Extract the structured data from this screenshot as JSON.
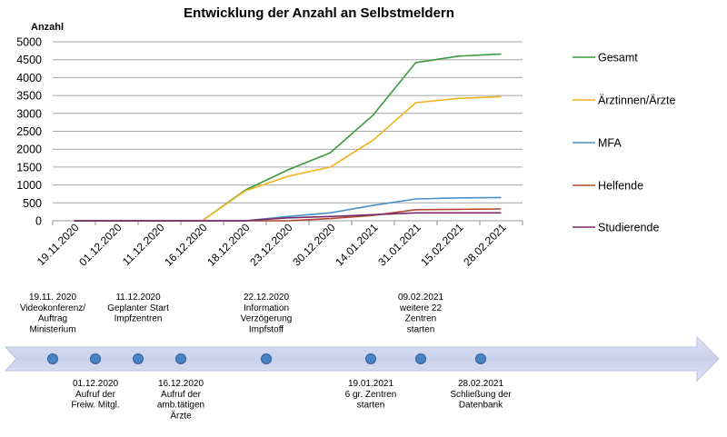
{
  "chart_data": {
    "type": "line",
    "title": "Entwicklung der Anzahl an Selbstmeldern",
    "ylabel": "Anzahl",
    "xlabel": "",
    "ylim": [
      0,
      5000
    ],
    "yticks": [
      0,
      500,
      1000,
      1500,
      2000,
      2500,
      3000,
      3500,
      4000,
      4500,
      5000
    ],
    "categories": [
      "19.11.2020",
      "01.12.2020",
      "11.12.2020",
      "16.12.2020",
      "18.12.2020",
      "23.12.2020",
      "30.12.2020",
      "14.01.2021",
      "31.01.2021",
      "15.02.2021",
      "28.02.2021"
    ],
    "grid": true,
    "legend_position": "right",
    "series": [
      {
        "name": "Gesamt",
        "color": "#3a9a3a",
        "values": [
          0,
          0,
          0,
          0,
          850,
          1420,
          1900,
          2950,
          4420,
          4600,
          4660
        ]
      },
      {
        "name": "Ärztinnen/Ärzte",
        "color": "#f0b31e",
        "values": [
          0,
          0,
          0,
          0,
          830,
          1240,
          1500,
          2250,
          3300,
          3420,
          3470
        ]
      },
      {
        "name": "MFA",
        "color": "#4b8fc5",
        "values": [
          0,
          0,
          0,
          0,
          0,
          120,
          220,
          430,
          610,
          640,
          650
        ]
      },
      {
        "name": "Helfende",
        "color": "#b14a2c",
        "values": [
          0,
          0,
          0,
          0,
          0,
          0,
          60,
          150,
          310,
          320,
          330
        ]
      },
      {
        "name": "Studierende",
        "color": "#7a2a6a",
        "values": [
          0,
          0,
          0,
          0,
          0,
          80,
          120,
          170,
          220,
          220,
          220
        ]
      }
    ]
  },
  "timeline": {
    "above": [
      {
        "date": "19.11. 2020",
        "lines": [
          "Videokonferenz/",
          "Auftrag",
          "Ministerium"
        ]
      },
      {
        "date": "11.12.2020",
        "lines": [
          "Geplanter Start",
          "Impfzentren"
        ]
      },
      {
        "date": "22.12.2020",
        "lines": [
          "Information",
          "Verzögerung",
          "Impfstoff"
        ]
      },
      {
        "date": "09.02.2021",
        "lines": [
          "weitere 22",
          "Zentren",
          "starten"
        ]
      }
    ],
    "below": [
      {
        "date": "01.12.2020",
        "lines": [
          "Aufruf der",
          "Freiw. Mitgl."
        ]
      },
      {
        "date": "16.12.2020",
        "lines": [
          "Aufruf der",
          "amb.tätigen",
          "Ärzte"
        ]
      },
      {
        "date": "19.01.2021",
        "lines": [
          "6 gr. Zentren",
          "starten"
        ]
      },
      {
        "date": "28.02.2021",
        "lines": [
          "Schließung der",
          "Datenbank"
        ]
      }
    ]
  }
}
